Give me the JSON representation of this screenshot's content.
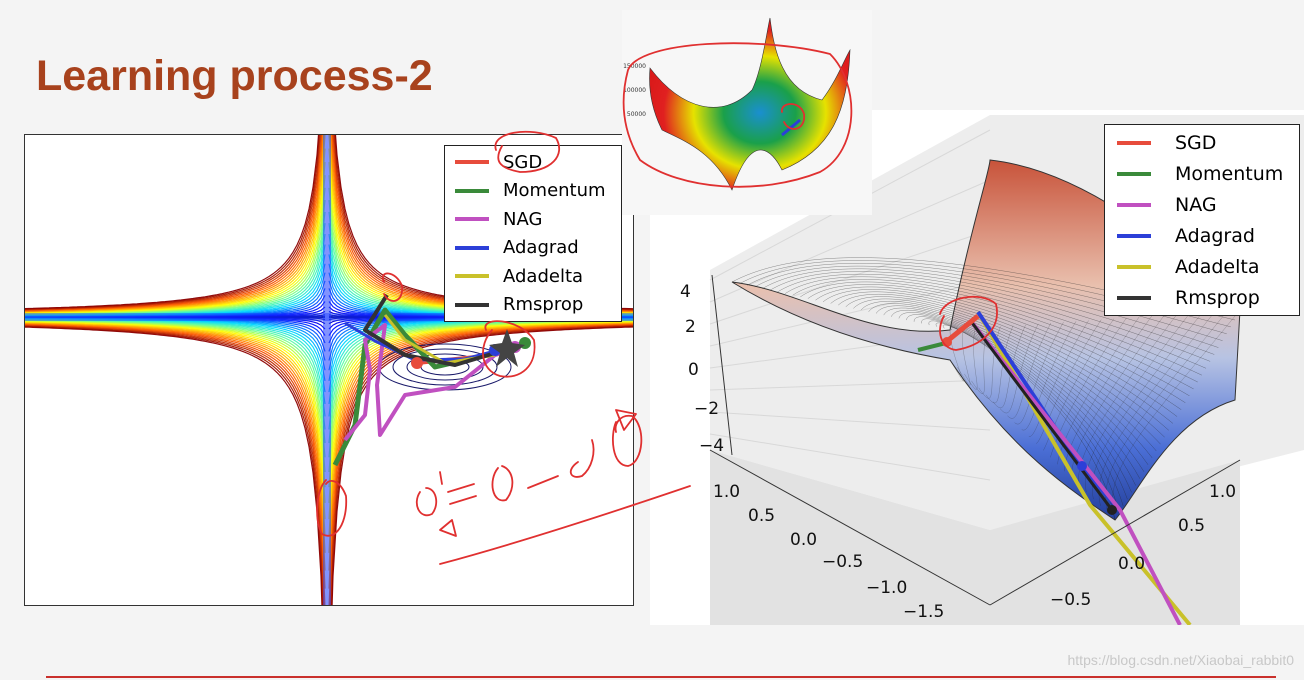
{
  "slide": {
    "title": "Learning process-2",
    "watermark": "https://blog.csdn.net/Xiaobai_rabbit0"
  },
  "legend": {
    "entries": [
      {
        "label": "SGD",
        "color": "#e74c3c"
      },
      {
        "label": "Momentum",
        "color": "#3a8a3a"
      },
      {
        "label": "NAG",
        "color": "#c050c0"
      },
      {
        "label": "Adagrad",
        "color": "#2c3fd8"
      },
      {
        "label": "Adadelta",
        "color": "#c9c12a"
      },
      {
        "label": "Rmsprop",
        "color": "#333333"
      }
    ]
  },
  "surface_axes": {
    "z_ticks": [
      "4",
      "2",
      "0",
      "−2",
      "−4"
    ],
    "left_ticks": [
      "1.0",
      "0.5",
      "0.0",
      "−0.5",
      "−1.0",
      "−1.5"
    ],
    "right_ticks": [
      "1.0",
      "0.5",
      "0.0",
      "−0.5"
    ]
  },
  "thumbnail": {
    "z_ticks": [
      "150000",
      "100000",
      "50000"
    ]
  }
}
